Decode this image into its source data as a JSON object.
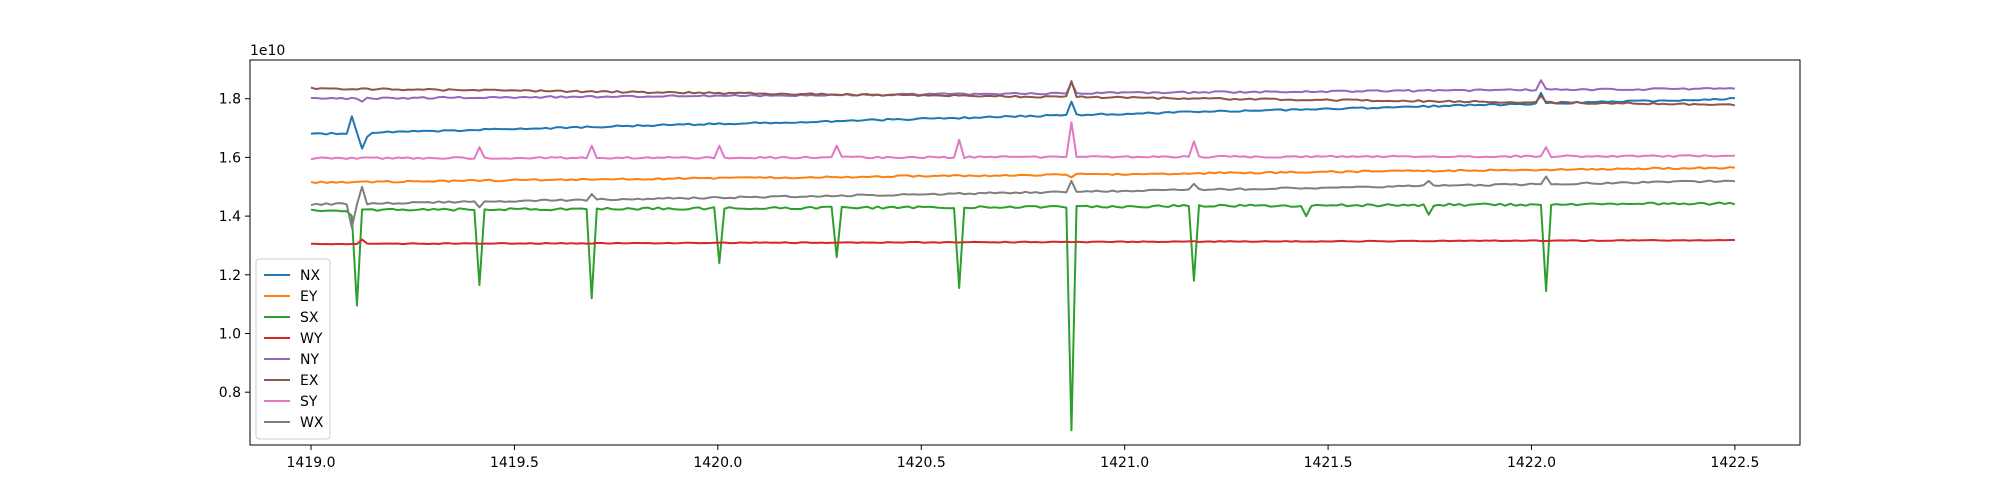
{
  "chart_data": {
    "type": "line",
    "title": "",
    "xlabel": "",
    "ylabel": "",
    "y_offset_text": "1e10",
    "y_multiplier": 10000000000,
    "xlim": [
      1418.85,
      1422.66
    ],
    "ylim": [
      0.62,
      1.932
    ],
    "x_range": [
      1419.0,
      1422.5
    ],
    "xticks": [
      1419.0,
      1419.5,
      1420.0,
      1420.5,
      1421.0,
      1421.5,
      1422.0,
      1422.5
    ],
    "xtick_labels": [
      "1419.0",
      "1419.5",
      "1420.0",
      "1420.5",
      "1421.0",
      "1421.5",
      "1422.0",
      "1422.5"
    ],
    "yticks": [
      0.8,
      1.0,
      1.2,
      1.4,
      1.6,
      1.8
    ],
    "ytick_labels": [
      "0.8",
      "1.0",
      "1.2",
      "1.4",
      "1.6",
      "1.8"
    ],
    "grid": false,
    "legend_position": "lower-left",
    "series": [
      {
        "name": "NX",
        "color": "#1f77b4",
        "start": 1.68,
        "end": 1.8,
        "noise": 0.003,
        "events": [
          {
            "x": 1419.1,
            "value": 1.74
          },
          {
            "x": 1419.12,
            "value": 1.63
          },
          {
            "x": 1419.14,
            "value": 1.67
          },
          {
            "x": 1420.87,
            "value": 1.79
          },
          {
            "x": 1422.02,
            "value": 1.82
          }
        ]
      },
      {
        "name": "EY",
        "color": "#ff7f0e",
        "start": 1.515,
        "end": 1.565,
        "noise": 0.003,
        "events": [
          {
            "x": 1420.87,
            "value": 1.532
          }
        ]
      },
      {
        "name": "SX",
        "color": "#2ca02c",
        "start": 1.42,
        "end": 1.443,
        "noise": 0.004,
        "events": [
          {
            "x": 1419.1,
            "value": 1.4
          },
          {
            "x": 1419.11,
            "value": 1.095
          },
          {
            "x": 1419.41,
            "value": 1.165
          },
          {
            "x": 1419.69,
            "value": 1.12
          },
          {
            "x": 1420.0,
            "value": 1.24
          },
          {
            "x": 1420.29,
            "value": 1.26
          },
          {
            "x": 1420.59,
            "value": 1.155
          },
          {
            "x": 1420.87,
            "value": 0.67
          },
          {
            "x": 1421.17,
            "value": 1.18
          },
          {
            "x": 1421.44,
            "value": 1.4
          },
          {
            "x": 1421.75,
            "value": 1.405
          },
          {
            "x": 1422.04,
            "value": 1.145
          }
        ]
      },
      {
        "name": "WY",
        "color": "#d62728",
        "start": 1.305,
        "end": 1.318,
        "noise": 0.0015,
        "events": [
          {
            "x": 1419.12,
            "value": 1.32
          }
        ]
      },
      {
        "name": "NY",
        "color": "#9467bd",
        "start": 1.8,
        "end": 1.835,
        "noise": 0.003,
        "events": [
          {
            "x": 1419.12,
            "value": 1.79
          },
          {
            "x": 1420.87,
            "value": 1.855
          },
          {
            "x": 1422.02,
            "value": 1.863
          }
        ]
      },
      {
        "name": "EX",
        "color": "#8c564b",
        "start": 1.835,
        "end": 1.78,
        "noise": 0.003,
        "events": [
          {
            "x": 1420.87,
            "value": 1.86
          },
          {
            "x": 1422.02,
            "value": 1.81
          }
        ]
      },
      {
        "name": "SY",
        "color": "#e377c2",
        "start": 1.597,
        "end": 1.605,
        "noise": 0.003,
        "events": [
          {
            "x": 1419.41,
            "value": 1.635
          },
          {
            "x": 1419.69,
            "value": 1.64
          },
          {
            "x": 1420.0,
            "value": 1.64
          },
          {
            "x": 1420.29,
            "value": 1.64
          },
          {
            "x": 1420.59,
            "value": 1.66
          },
          {
            "x": 1420.87,
            "value": 1.72
          },
          {
            "x": 1421.17,
            "value": 1.655
          },
          {
            "x": 1422.04,
            "value": 1.635
          }
        ]
      },
      {
        "name": "WX",
        "color": "#7f7f7f",
        "start": 1.44,
        "end": 1.52,
        "noise": 0.003,
        "events": [
          {
            "x": 1419.1,
            "value": 1.36
          },
          {
            "x": 1419.12,
            "value": 1.5
          },
          {
            "x": 1419.14,
            "value": 1.44
          },
          {
            "x": 1419.41,
            "value": 1.43
          },
          {
            "x": 1419.69,
            "value": 1.475
          },
          {
            "x": 1420.87,
            "value": 1.52
          },
          {
            "x": 1421.17,
            "value": 1.51
          },
          {
            "x": 1421.75,
            "value": 1.52
          },
          {
            "x": 1422.04,
            "value": 1.535
          }
        ]
      }
    ]
  }
}
